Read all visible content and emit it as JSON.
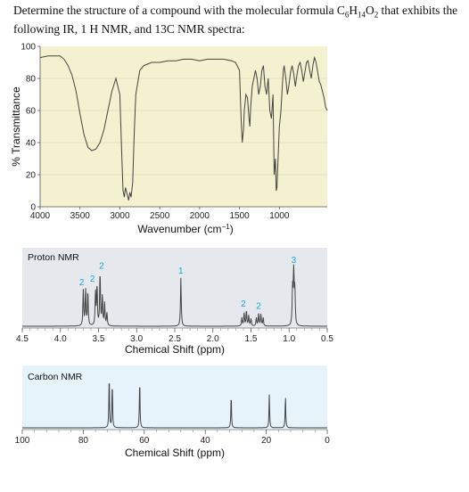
{
  "question": {
    "part1": "Determine the structure of a compound with the molecular formula C",
    "c_sub": "6",
    "h": "H",
    "h_sub": "14",
    "o": "O",
    "o_sub": "2",
    "part2": " that exhibits the following IR, 1 H NMR, and 13C NMR spectra:"
  },
  "colors": {
    "ir_bg": "#f3f1cf",
    "hnmr_bg": "#e5e8ed",
    "cnmr_bg": "#e6f3fb",
    "integral": "#1aa3d9",
    "trace": "#444444"
  },
  "chart_data": [
    {
      "type": "line",
      "xlabel": "Wavenumber (cm",
      "xlabel_sup": "−1",
      "xlabel_close": ")",
      "ylabel": "% Transmittance",
      "xlim": [
        4000,
        400
      ],
      "ylim": [
        0,
        100
      ],
      "x_ticks": [
        "4000",
        "3500",
        "3000",
        "2500",
        "2000",
        "1500",
        "1000"
      ],
      "y_ticks": [
        "0",
        "20",
        "40",
        "60",
        "80",
        "100"
      ],
      "x_tick_values": [
        4000,
        3500,
        3000,
        2500,
        2000,
        1500,
        1000
      ],
      "y_tick_values": [
        0,
        20,
        40,
        60,
        80,
        100
      ],
      "x": [
        4000,
        3900,
        3800,
        3750,
        3700,
        3650,
        3600,
        3550,
        3500,
        3450,
        3400,
        3350,
        3300,
        3250,
        3200,
        3150,
        3100,
        3050,
        3000,
        2975,
        2960,
        2945,
        2930,
        2910,
        2890,
        2875,
        2860,
        2840,
        2820,
        2800,
        2750,
        2700,
        2600,
        2500,
        2400,
        2300,
        2200,
        2100,
        2000,
        1900,
        1800,
        1700,
        1600,
        1550,
        1500,
        1480,
        1465,
        1450,
        1440,
        1420,
        1400,
        1380,
        1370,
        1360,
        1340,
        1320,
        1300,
        1280,
        1260,
        1240,
        1220,
        1200,
        1180,
        1160,
        1140,
        1120,
        1100,
        1080,
        1065,
        1050,
        1040,
        1030,
        1020,
        1000,
        980,
        960,
        950,
        940,
        920,
        900,
        880,
        860,
        840,
        820,
        800,
        780,
        760,
        740,
        720,
        700,
        680,
        660,
        640,
        620,
        600,
        580,
        560,
        540,
        520,
        500,
        480,
        460,
        440,
        420,
        400
      ],
      "y": [
        93,
        94,
        94,
        94,
        92,
        88,
        82,
        72,
        58,
        45,
        37,
        35,
        36,
        40,
        48,
        60,
        72,
        80,
        70,
        30,
        10,
        6,
        12,
        8,
        4,
        9,
        6,
        15,
        45,
        70,
        85,
        88,
        90,
        90,
        91,
        91,
        92,
        92,
        91,
        92,
        92,
        92,
        91,
        90,
        85,
        55,
        40,
        48,
        60,
        70,
        68,
        55,
        50,
        62,
        75,
        80,
        85,
        80,
        70,
        75,
        85,
        88,
        75,
        70,
        80,
        60,
        55,
        70,
        20,
        30,
        10,
        12,
        25,
        50,
        60,
        78,
        85,
        88,
        80,
        70,
        76,
        84,
        88,
        83,
        75,
        82,
        88,
        90,
        85,
        78,
        84,
        90,
        91,
        85,
        80,
        88,
        93,
        90,
        84,
        78,
        76,
        72,
        68,
        62,
        60
      ]
    },
    {
      "type": "line",
      "title": "Proton NMR",
      "xlabel": "Chemical Shift (ppm)",
      "xlim": [
        4.5,
        0.5
      ],
      "x_ticks": [
        "4.5",
        "4.0",
        "3.5",
        "3.0",
        "2.5",
        "2.0",
        "1.5",
        "1.0",
        "0.5"
      ],
      "x_tick_values": [
        4.5,
        4.0,
        3.5,
        3.0,
        2.5,
        2.0,
        1.5,
        1.0,
        0.5
      ],
      "peaks": [
        {
          "shift": 3.7,
          "height": 0.6
        },
        {
          "shift": 3.67,
          "height": 0.62
        },
        {
          "shift": 3.64,
          "height": 0.58
        },
        {
          "shift": 3.54,
          "height": 0.55
        },
        {
          "shift": 3.52,
          "height": 0.68
        },
        {
          "shift": 3.48,
          "height": 0.9
        },
        {
          "shift": 3.45,
          "height": 0.5
        },
        {
          "shift": 3.42,
          "height": 0.38
        },
        {
          "shift": 3.39,
          "height": 0.22
        },
        {
          "shift": 2.42,
          "height": 0.82
        },
        {
          "shift": 1.62,
          "height": 0.14
        },
        {
          "shift": 1.59,
          "height": 0.22
        },
        {
          "shift": 1.56,
          "height": 0.26
        },
        {
          "shift": 1.53,
          "height": 0.18
        },
        {
          "shift": 1.5,
          "height": 0.12
        },
        {
          "shift": 1.43,
          "height": 0.14
        },
        {
          "shift": 1.4,
          "height": 0.22
        },
        {
          "shift": 1.37,
          "height": 0.2
        },
        {
          "shift": 1.34,
          "height": 0.14
        },
        {
          "shift": 0.955,
          "height": 0.62
        },
        {
          "shift": 0.94,
          "height": 1.0
        },
        {
          "shift": 0.925,
          "height": 0.6
        }
      ],
      "integrations": [
        {
          "label": "2",
          "shift": 3.72
        },
        {
          "label": "2",
          "shift": 3.58
        },
        {
          "label": "2",
          "shift": 3.46
        },
        {
          "label": "1",
          "shift": 2.42
        },
        {
          "label": "2",
          "shift": 1.6
        },
        {
          "label": "2",
          "shift": 1.4
        },
        {
          "label": "3",
          "shift": 0.94
        }
      ]
    },
    {
      "type": "line",
      "title": "Carbon NMR",
      "xlabel": "Chemical Shift (ppm)",
      "xlim": [
        100,
        0
      ],
      "x_ticks": [
        "100",
        "80",
        "60",
        "40",
        "20",
        "0"
      ],
      "x_tick_values": [
        100,
        80,
        60,
        40,
        20,
        0
      ],
      "peaks": [
        {
          "shift": 71.5,
          "height": 0.95
        },
        {
          "shift": 70.5,
          "height": 0.82
        },
        {
          "shift": 61.5,
          "height": 0.88
        },
        {
          "shift": 31.5,
          "height": 0.6
        },
        {
          "shift": 19.0,
          "height": 0.6
        },
        {
          "shift": 13.7,
          "height": 0.58
        }
      ]
    }
  ]
}
